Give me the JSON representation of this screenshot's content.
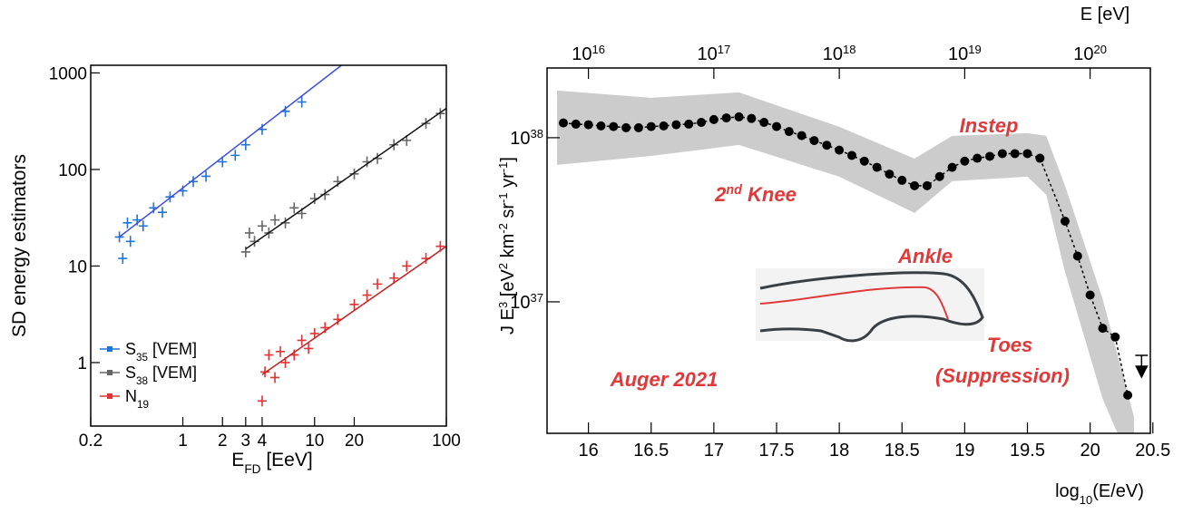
{
  "chart_data": [
    {
      "type": "scatter",
      "x_scale": "log",
      "y_scale": "log",
      "ylabel": "SD energy estimators",
      "xlabel": [
        {
          "text": "E"
        },
        {
          "sub": "FD"
        },
        {
          "text": " [EeV]"
        }
      ],
      "xlim": [
        0.2,
        100
      ],
      "ylim": [
        0.22,
        1200
      ],
      "xticks": [
        0.2,
        1,
        2,
        3,
        4,
        10,
        20,
        100
      ],
      "yticks": [
        1,
        10,
        100,
        1000
      ],
      "legend": "lower left",
      "series": [
        {
          "name": [
            {
              "text": "S"
            },
            {
              "sub": "35"
            },
            {
              "text": " [VEM]"
            }
          ],
          "color": "#1f74d8",
          "fit_color": "#3a4fe0",
          "x": [
            0.33,
            0.35,
            0.38,
            0.4,
            0.45,
            0.5,
            0.6,
            0.7,
            0.8,
            1,
            1.2,
            1.5,
            2,
            2.5,
            3,
            4,
            6,
            8
          ],
          "values": [
            20,
            12,
            28,
            18,
            30,
            26,
            40,
            36,
            52,
            60,
            75,
            85,
            120,
            140,
            180,
            260,
            400,
            500
          ],
          "fit_x": [
            0.33,
            16
          ],
          "fit_y": [
            20,
            1200
          ]
        },
        {
          "name": [
            {
              "text": "S"
            },
            {
              "sub": "38"
            },
            {
              "text": " [VEM]"
            }
          ],
          "color": "#666666",
          "fit_color": "#111111",
          "x": [
            3,
            3.2,
            3.5,
            4,
            4.5,
            5,
            6,
            7,
            8,
            10,
            12,
            15,
            20,
            25,
            30,
            40,
            50,
            70,
            90
          ],
          "values": [
            14,
            22,
            18,
            26,
            22,
            30,
            28,
            40,
            35,
            50,
            55,
            75,
            90,
            120,
            130,
            180,
            200,
            300,
            380
          ],
          "fit_x": [
            3,
            100
          ],
          "fit_y": [
            15,
            430
          ]
        },
        {
          "name": [
            {
              "text": "N"
            },
            {
              "sub": "19"
            }
          ],
          "color": "#e03434",
          "fit_color": "#c42020",
          "x": [
            4,
            4.2,
            4.5,
            5,
            5.5,
            6,
            7,
            8,
            9,
            10,
            12,
            15,
            20,
            25,
            30,
            40,
            50,
            70,
            90
          ],
          "values": [
            0.4,
            0.8,
            1.2,
            0.7,
            1.3,
            1.0,
            1.2,
            1.7,
            1.4,
            2.0,
            2.3,
            2.8,
            4,
            5,
            6.5,
            7.5,
            10,
            12,
            16
          ],
          "fit_x": [
            4,
            100
          ],
          "fit_y": [
            0.75,
            16
          ]
        }
      ]
    },
    {
      "type": "line",
      "y_scale": "log",
      "xlabel": [
        {
          "text": "log"
        },
        {
          "sub": "10"
        },
        {
          "text": "(E/eV)"
        }
      ],
      "x2label": "E [eV]",
      "ylabel": [
        {
          "text": "J E"
        },
        {
          "sup": "3"
        },
        {
          "text": " [eV"
        },
        {
          "sup": "2"
        },
        {
          "text": " km"
        },
        {
          "sup": "-2"
        },
        {
          "text": " sr"
        },
        {
          "sup": "-1"
        },
        {
          "text": " yr"
        },
        {
          "sup": "-1"
        },
        {
          "text": "]"
        }
      ],
      "xlim": [
        15.67,
        20.48
      ],
      "ylim": [
        1.58e+36,
        2.66e+38
      ],
      "xticks": [
        16,
        16.5,
        17,
        17.5,
        18,
        18.5,
        19,
        19.5,
        20,
        20.5
      ],
      "x2ticks": [
        {
          "value": 16,
          "label": "10",
          "sup": "16"
        },
        {
          "value": 17,
          "label": "10",
          "sup": "17"
        },
        {
          "value": 18,
          "label": "10",
          "sup": "18"
        },
        {
          "value": 19,
          "label": "10",
          "sup": "19"
        },
        {
          "value": 20,
          "label": "10",
          "sup": "20"
        }
      ],
      "yticks": [
        {
          "value": 1e+37,
          "label": "10",
          "sup": "37"
        },
        {
          "value": 1e+38,
          "label": "10",
          "sup": "38"
        }
      ],
      "series": [
        {
          "color": "#000000",
          "x": [
            15.8,
            15.9,
            16.0,
            16.1,
            16.2,
            16.3,
            16.4,
            16.5,
            16.6,
            16.7,
            16.8,
            16.9,
            17.0,
            17.1,
            17.2,
            17.3,
            17.4,
            17.5,
            17.6,
            17.7,
            17.8,
            17.9,
            18.0,
            18.1,
            18.2,
            18.3,
            18.4,
            18.5,
            18.6,
            18.7,
            18.8,
            18.9,
            19.0,
            19.1,
            19.2,
            19.3,
            19.4,
            19.5,
            19.6,
            19.8,
            19.9,
            20.0,
            20.1,
            20.2,
            20.3
          ],
          "values": [
            1.23e+38,
            1.21e+38,
            1.2e+38,
            1.18e+38,
            1.17e+38,
            1.15e+38,
            1.15e+38,
            1.17e+38,
            1.18e+38,
            1.2e+38,
            1.21e+38,
            1.24e+38,
            1.29e+38,
            1.32e+38,
            1.34e+38,
            1.31e+38,
            1.24e+38,
            1.17e+38,
            1.09e+38,
            1.03e+38,
            9.6e+37,
            9e+37,
            8.4e+37,
            7.8e+37,
            7.2e+37,
            6.6e+37,
            6e+37,
            5.5e+37,
            5.1e+37,
            5.1e+37,
            5.8e+37,
            6.6e+37,
            7.2e+37,
            7.5e+37,
            7.7e+37,
            8e+37,
            8e+37,
            8e+37,
            7.5e+37,
            3.1e+37,
            1.9e+37,
            1.1e+37,
            6.9e+36,
            6.1e+36,
            2.7e+36
          ]
        }
      ],
      "upper_limits": {
        "x": [
          20.41
        ],
        "values": [
          4.72e+36
        ]
      },
      "band": {
        "color": "#cccccc",
        "x": [
          15.75,
          16.5,
          17.2,
          18.0,
          18.6,
          18.9,
          19.5,
          19.65,
          19.8,
          20.1,
          20.35
        ],
        "upper": [
          1.94e+38,
          1.75e+38,
          1.89e+38,
          1.165e+38,
          7.46e+37,
          1.026e+38,
          1.066e+38,
          1.026e+38,
          5.1e+37,
          1.04e+37,
          1.99e+36
        ],
        "lower": [
          6.83e+37,
          7.75e+37,
          9.03e+37,
          5.79e+37,
          3.48e+37,
          5.43e+37,
          5.79e+37,
          4.49e+37,
          1.52e+37,
          2.56e+36,
          9.27e+35
        ]
      },
      "annotation_color": "#e0393a",
      "annotations": [
        [
          {
            "text": "2"
          },
          {
            "sup": "nd"
          },
          {
            "text": " Knee"
          }
        ],
        [
          {
            "text": "Instep"
          }
        ],
        [
          {
            "text": "Ankle"
          }
        ],
        [
          {
            "text": "Toes"
          }
        ],
        [
          {
            "text": "(Suppression)"
          }
        ],
        [
          {
            "text": "Auger 2021"
          }
        ]
      ]
    }
  ]
}
